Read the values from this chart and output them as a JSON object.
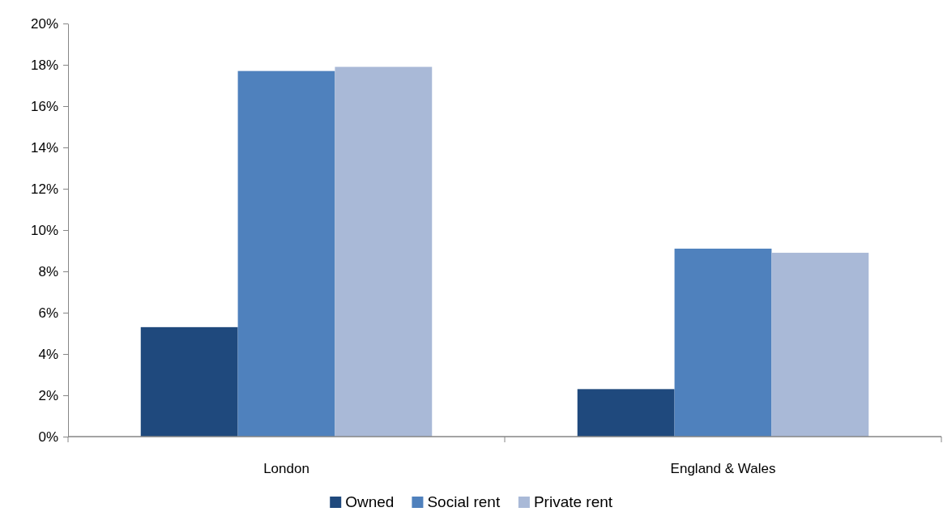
{
  "chart_data": {
    "type": "bar",
    "categories": [
      "London",
      "England & Wales"
    ],
    "series": [
      {
        "name": "Owned",
        "color": "#1f497d",
        "values": [
          5.3,
          2.3
        ]
      },
      {
        "name": "Social rent",
        "color": "#4f81bd",
        "values": [
          17.7,
          9.1
        ]
      },
      {
        "name": "Private rent",
        "color": "#a9b9d7",
        "values": [
          17.9,
          8.9
        ]
      }
    ],
    "ylim": [
      0,
      20
    ],
    "yticks": [
      {
        "value": 0,
        "label": "0%"
      },
      {
        "value": 2,
        "label": "2%"
      },
      {
        "value": 4,
        "label": "4%"
      },
      {
        "value": 6,
        "label": "6%"
      },
      {
        "value": 8,
        "label": "8%"
      },
      {
        "value": 10,
        "label": "10%"
      },
      {
        "value": 12,
        "label": "12%"
      },
      {
        "value": 14,
        "label": "14%"
      },
      {
        "value": 16,
        "label": "16%"
      },
      {
        "value": 18,
        "label": "18%"
      },
      {
        "value": 20,
        "label": "20%"
      }
    ],
    "grid": false,
    "legend": "bottom"
  }
}
